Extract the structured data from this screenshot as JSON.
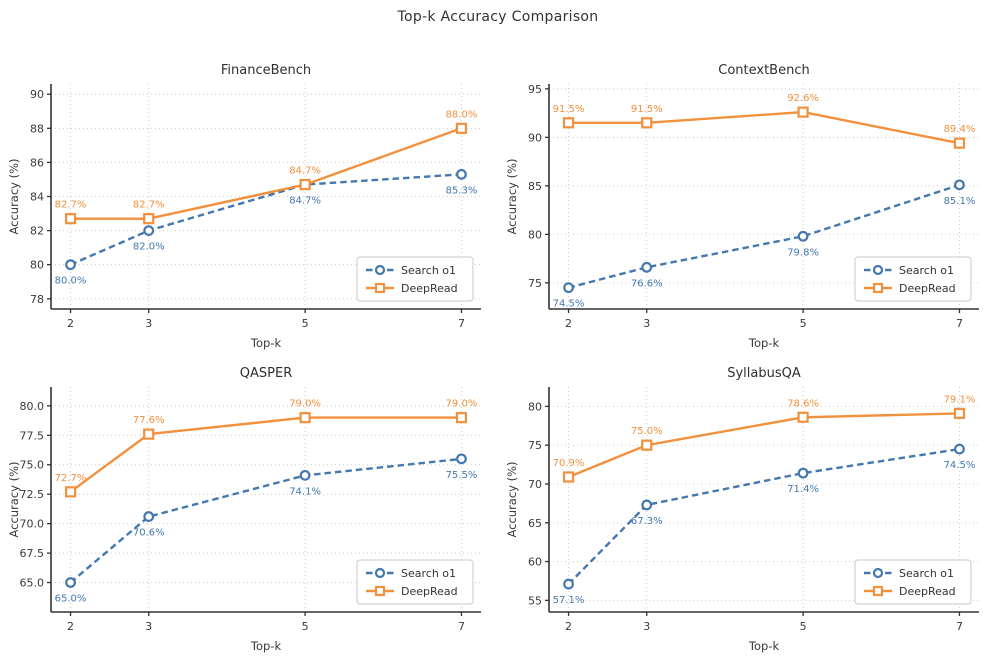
{
  "figure_title": "Top-k Accuracy Comparison",
  "colors": {
    "search_o1": "#4478ae",
    "deepread": "#f2913d",
    "grid": "#cccccc",
    "axis": "#333333",
    "text": "#3a3a3a",
    "legend_border": "#c9c9c9",
    "marker_fill": "#ffffff"
  },
  "series_styles": [
    {
      "name": "Search o1",
      "color": "#4478ae",
      "dash": "6.5 4",
      "marker": "circle",
      "label_side": "below"
    },
    {
      "name": "DeepRead",
      "color": "#f2913d",
      "dash": "",
      "marker": "square",
      "label_side": "above"
    }
  ],
  "chart_data": [
    {
      "type": "line",
      "title": "FinanceBench",
      "xlabel": "Top-k",
      "ylabel": "Accuracy (%)",
      "x": [
        2,
        3,
        5,
        7
      ],
      "xlim": [
        1.75,
        7.25
      ],
      "ylim": [
        77.4,
        90.6
      ],
      "yticks": [
        78,
        80,
        82,
        84,
        86,
        88,
        90
      ],
      "ytick_decimals": 0,
      "grid": true,
      "legend_position": "lower right",
      "series": [
        {
          "name": "Search o1",
          "values": [
            80.0,
            82.0,
            84.7,
            85.3
          ]
        },
        {
          "name": "DeepRead",
          "values": [
            82.7,
            82.7,
            84.7,
            88.0
          ]
        }
      ]
    },
    {
      "type": "line",
      "title": "ContextBench",
      "xlabel": "Top-k",
      "ylabel": "Accuracy (%)",
      "x": [
        2,
        3,
        5,
        7
      ],
      "xlim": [
        1.75,
        7.25
      ],
      "ylim": [
        72.3,
        95.5
      ],
      "yticks": [
        75,
        80,
        85,
        90,
        95
      ],
      "ytick_decimals": 0,
      "grid": true,
      "legend_position": "lower right",
      "series": [
        {
          "name": "Search o1",
          "values": [
            74.5,
            76.6,
            79.8,
            85.1
          ]
        },
        {
          "name": "DeepRead",
          "values": [
            91.5,
            91.5,
            92.6,
            89.4
          ]
        }
      ]
    },
    {
      "type": "line",
      "title": "QASPER",
      "xlabel": "Top-k",
      "ylabel": "Accuracy (%)",
      "x": [
        2,
        3,
        5,
        7
      ],
      "xlim": [
        1.75,
        7.25
      ],
      "ylim": [
        62.5,
        81.6
      ],
      "yticks": [
        65.0,
        67.5,
        70.0,
        72.5,
        75.0,
        77.5,
        80.0
      ],
      "ytick_decimals": 1,
      "grid": true,
      "legend_position": "lower right",
      "series": [
        {
          "name": "Search o1",
          "values": [
            65.0,
            70.6,
            74.1,
            75.5
          ]
        },
        {
          "name": "DeepRead",
          "values": [
            72.7,
            77.6,
            79.0,
            79.0
          ]
        }
      ]
    },
    {
      "type": "line",
      "title": "SyllabusQA",
      "xlabel": "Top-k",
      "ylabel": "Accuracy (%)",
      "x": [
        2,
        3,
        5,
        7
      ],
      "xlim": [
        1.75,
        7.25
      ],
      "ylim": [
        53.5,
        82.5
      ],
      "yticks": [
        55,
        60,
        65,
        70,
        75,
        80
      ],
      "ytick_decimals": 0,
      "grid": true,
      "legend_position": "lower right",
      "series": [
        {
          "name": "Search o1",
          "values": [
            57.1,
            67.3,
            71.4,
            74.5
          ]
        },
        {
          "name": "DeepRead",
          "values": [
            70.9,
            75.0,
            78.6,
            79.1
          ]
        }
      ]
    }
  ]
}
